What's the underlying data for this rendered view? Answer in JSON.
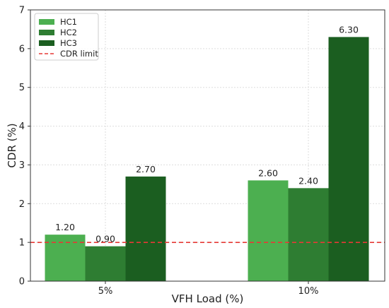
{
  "chart_data": {
    "type": "bar",
    "xlabel": "VFH Load (%)",
    "ylabel": "CDR (%)",
    "categories": [
      "5%",
      "10%"
    ],
    "series": [
      {
        "name": "HC1",
        "values": [
          1.2,
          2.6
        ],
        "color": "#4caf50"
      },
      {
        "name": "HC2",
        "values": [
          0.9,
          2.4
        ],
        "color": "#2e7d32"
      },
      {
        "name": "HC3",
        "values": [
          2.7,
          6.3
        ],
        "color": "#1b5e20"
      }
    ],
    "data_labels": [
      [
        "1.20",
        "2.60"
      ],
      [
        "0.90",
        "2.40"
      ],
      [
        "2.70",
        "6.30"
      ]
    ],
    "ylim": [
      0,
      7
    ],
    "yticks": [
      0,
      1,
      2,
      3,
      4,
      5,
      6,
      7
    ],
    "grid": true,
    "legend_position": "top-left",
    "reference_line": {
      "name": "CDR limit",
      "value": 1,
      "color": "#e53935",
      "style": "dashed"
    }
  }
}
